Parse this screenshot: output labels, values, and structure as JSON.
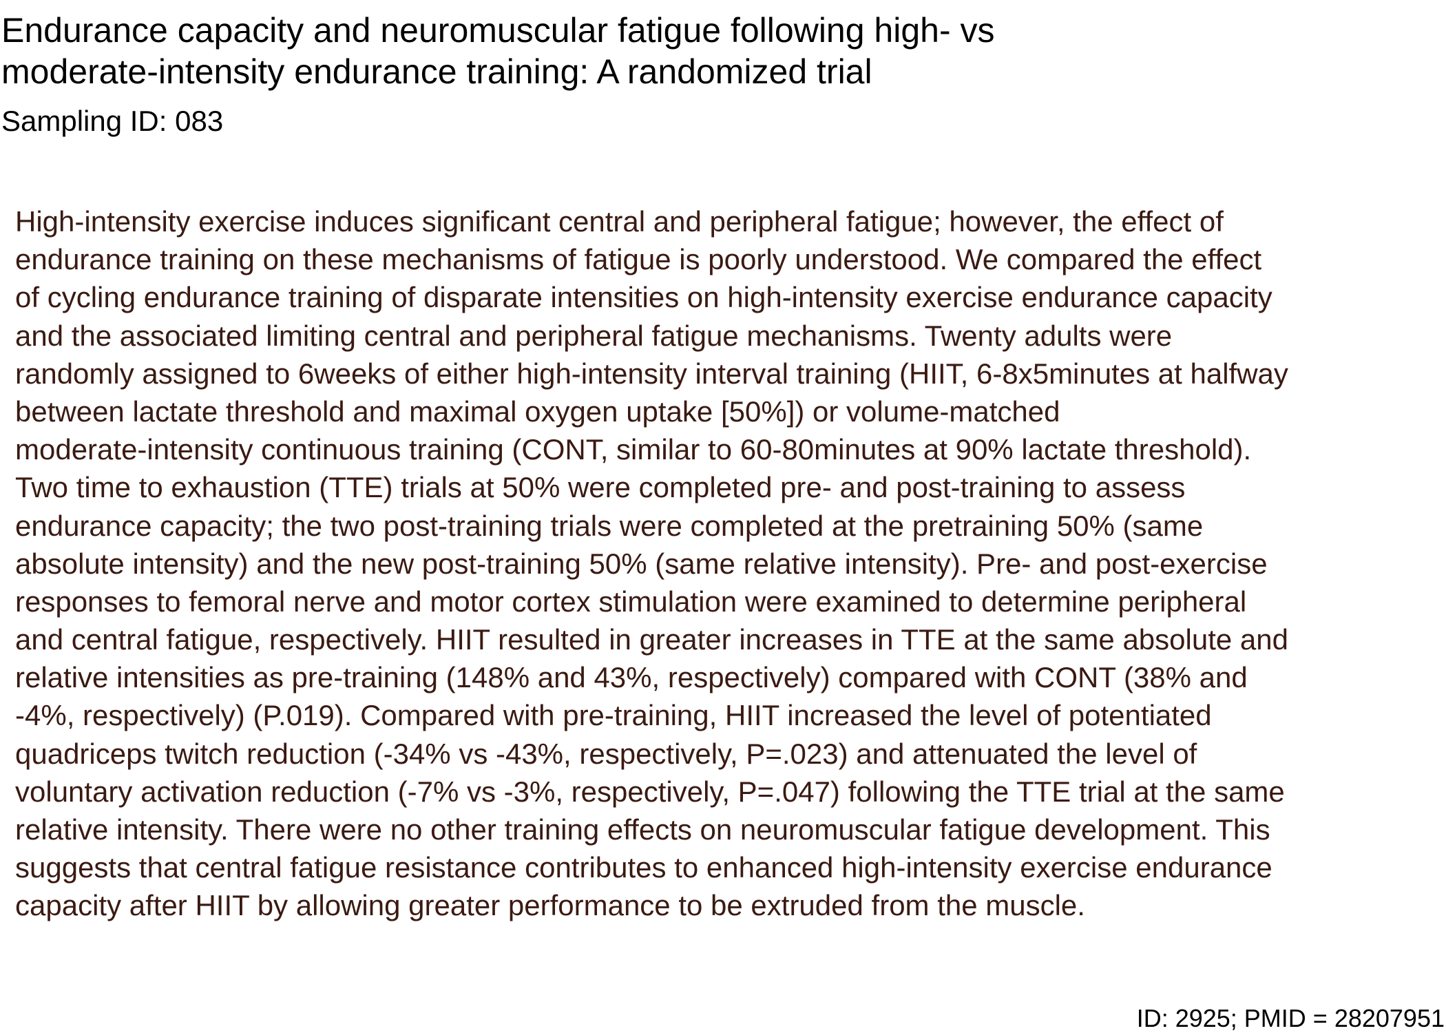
{
  "document": {
    "title_lines": [
      "Endurance capacity and neuromuscular fatigue following high- vs",
      "moderate-intensity endurance training: A randomized trial"
    ],
    "sampling_id": "Sampling ID: 083",
    "abstract_lines": [
      "High-intensity exercise induces significant central and peripheral fatigue; however, the effect of",
      "endurance training on these mechanisms of fatigue is poorly understood. We compared the effect",
      "of cycling endurance training of disparate intensities on high-intensity exercise endurance capacity",
      "and the associated limiting central and peripheral fatigue mechanisms. Twenty adults were",
      "randomly assigned to 6weeks of either high-intensity interval training (HIIT, 6-8x5minutes at halfway",
      "between lactate threshold and maximal oxygen uptake [50%]) or volume-matched",
      "moderate-intensity continuous training (CONT, similar to 60-80minutes at 90% lactate threshold).",
      "Two time to exhaustion (TTE) trials at 50% were completed pre- and post-training to assess",
      "endurance capacity; the two post-training trials were completed at the pretraining 50% (same",
      "absolute intensity) and the new post-training 50% (same relative intensity). Pre- and post-exercise",
      "responses to femoral nerve and motor cortex stimulation were examined to determine peripheral",
      "and central fatigue, respectively. HIIT resulted in greater increases in TTE at the same absolute and",
      "relative intensities as pre-training (148% and 43%, respectively) compared with CONT (38% and",
      "-4%, respectively) (P.019). Compared with pre-training, HIIT increased the level of potentiated",
      "quadriceps twitch reduction (-34% vs -43%, respectively, P=.023) and attenuated the level of",
      "voluntary activation reduction (-7% vs -3%, respectively, P=.047) following the TTE trial at the same",
      "relative intensity. There were no other training effects on neuromuscular fatigue development. This",
      "suggests that central fatigue resistance contributes to enhanced high-intensity exercise endurance",
      "capacity after HIIT by allowing greater performance to be extruded from the muscle."
    ],
    "footer_id": "ID: 2925; PMID = 28207951"
  },
  "colors": {
    "title_text": "#000000",
    "abstract_text": "#3a1a12",
    "background": "#ffffff"
  }
}
